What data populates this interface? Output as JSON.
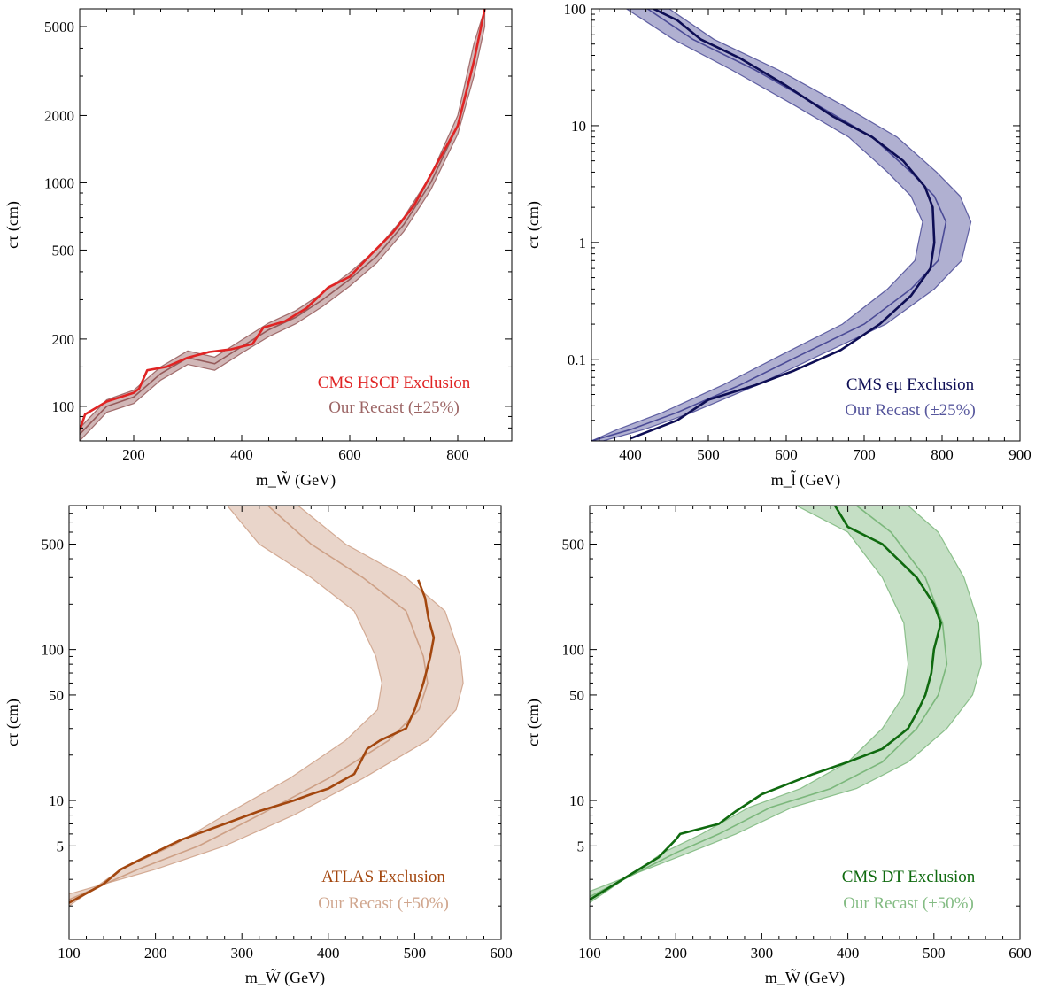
{
  "chart_data": [
    {
      "type": "line",
      "xlabel": "m_W̃ (GeV)",
      "ylabel": "cτ (cm)",
      "xlim": [
        100,
        900
      ],
      "ylim": [
        70,
        6000
      ],
      "yscale": "log",
      "xticks": [
        200,
        400,
        600,
        800
      ],
      "yticks": [
        100,
        200,
        500,
        1000,
        2000,
        5000
      ],
      "legend_position": "bottom-right",
      "band": {
        "name": "Our Recast (±25%)",
        "color": "#8b4a4a",
        "center": {
          "x": [
            100,
            150,
            200,
            250,
            300,
            350,
            400,
            450,
            500,
            550,
            600,
            650,
            700,
            750,
            800,
            830,
            850
          ],
          "y": [
            75,
            100,
            110,
            140,
            165,
            155,
            185,
            220,
            250,
            300,
            370,
            470,
            650,
            1000,
            1800,
            3500,
            6000
          ]
        },
        "lower": {
          "x": [
            100,
            150,
            200,
            250,
            300,
            350,
            400,
            450,
            500,
            550,
            600,
            650,
            700,
            750,
            800,
            830,
            850
          ],
          "y": [
            70,
            94,
            103,
            131,
            154,
            145,
            173,
            205,
            234,
            280,
            345,
            438,
            605,
            930,
            1650,
            3000,
            5000
          ]
        },
        "upper": {
          "x": [
            100,
            150,
            200,
            250,
            300,
            350,
            400,
            450,
            500,
            550,
            600,
            650,
            700,
            750,
            800,
            830,
            850
          ],
          "y": [
            80,
            107,
            118,
            150,
            177,
            166,
            198,
            236,
            268,
            322,
            397,
            505,
            700,
            1080,
            2000,
            4200,
            6000
          ]
        }
      },
      "series": [
        {
          "name": "CMS HSCP Exclusion",
          "color": "#e02424",
          "x": [
            100,
            110,
            150,
            200,
            210,
            225,
            260,
            300,
            340,
            380,
            420,
            440,
            480,
            520,
            560,
            600,
            640,
            680,
            720,
            760,
            800,
            830,
            850
          ],
          "y": [
            78,
            92,
            105,
            115,
            120,
            145,
            150,
            165,
            175,
            180,
            190,
            225,
            240,
            275,
            340,
            380,
            480,
            600,
            800,
            1200,
            1800,
            3500,
            6000
          ]
        }
      ]
    },
    {
      "type": "line",
      "xlabel": "m_l̃ (GeV)",
      "ylabel": "cτ (cm)",
      "xlim": [
        350,
        900
      ],
      "ylim": [
        0.02,
        100
      ],
      "yscale": "log",
      "xticks": [
        400,
        500,
        600,
        700,
        800,
        900
      ],
      "yticks": [
        0.1,
        1,
        10,
        100
      ],
      "legend_position": "bottom-right",
      "band": {
        "name": "Our Recast (±25%)",
        "color": "#3a3a8c",
        "center": {
          "x": [
            422,
            480,
            560,
            640,
            710,
            760,
            790,
            805,
            795,
            760,
            700,
            620,
            540,
            460,
            400,
            350
          ],
          "y": [
            100,
            55,
            30,
            15,
            8,
            4,
            2.5,
            1.5,
            0.7,
            0.4,
            0.2,
            0.11,
            0.06,
            0.035,
            0.025,
            0.02
          ]
        },
        "lower": {
          "x": [
            395,
            455,
            530,
            610,
            680,
            730,
            760,
            775,
            765,
            730,
            672,
            595,
            518,
            441,
            383,
            350
          ],
          "y": [
            100,
            55,
            30,
            15,
            8,
            4,
            2.5,
            1.5,
            0.7,
            0.4,
            0.2,
            0.11,
            0.06,
            0.035,
            0.025,
            0.02
          ]
        },
        "upper": {
          "x": [
            450,
            507,
            590,
            672,
            742,
            793,
            823,
            837,
            825,
            790,
            728,
            645,
            562,
            479,
            417,
            365
          ],
          "y": [
            100,
            55,
            30,
            15,
            8,
            4,
            2.5,
            1.5,
            0.7,
            0.4,
            0.2,
            0.11,
            0.06,
            0.035,
            0.025,
            0.02
          ]
        }
      },
      "series": [
        {
          "name": "CMS eμ Exclusion",
          "color": "#0e0e55",
          "x": [
            430,
            460,
            490,
            540,
            600,
            660,
            710,
            750,
            778,
            788,
            790,
            785,
            760,
            720,
            670,
            610,
            560,
            500,
            460,
            400
          ],
          "y": [
            100,
            80,
            55,
            38,
            22,
            12,
            8,
            5,
            3,
            2,
            1,
            0.6,
            0.35,
            0.2,
            0.12,
            0.08,
            0.06,
            0.045,
            0.03,
            0.021
          ]
        }
      ]
    },
    {
      "type": "line",
      "xlabel": "m_W̃ (GeV)",
      "ylabel": "cτ (cm)",
      "xlim": [
        100,
        600
      ],
      "ylim": [
        1.2,
        900
      ],
      "yscale": "log",
      "xticks": [
        100,
        200,
        300,
        400,
        500,
        600
      ],
      "yticks": [
        5,
        10,
        50,
        100,
        500
      ],
      "legend_position": "bottom-right",
      "band": {
        "name": "Our Recast (±50%)",
        "color": "#c8967a",
        "center": {
          "x": [
            330,
            380,
            440,
            490,
            510,
            515,
            505,
            470,
            400,
            320,
            250,
            180,
            100
          ],
          "y": [
            900,
            500,
            300,
            180,
            90,
            60,
            40,
            25,
            14,
            8,
            5,
            3.5,
            2.2
          ]
        },
        "lower": {
          "x": [
            283,
            320,
            380,
            430,
            455,
            462,
            457,
            420,
            355,
            280,
            220,
            160,
            100
          ],
          "y": [
            900,
            500,
            300,
            180,
            90,
            60,
            40,
            25,
            14,
            8,
            5,
            3.5,
            2.0
          ]
        },
        "upper": {
          "x": [
            365,
            420,
            490,
            535,
            553,
            556,
            548,
            515,
            440,
            360,
            280,
            200,
            100
          ],
          "y": [
            900,
            500,
            300,
            180,
            90,
            60,
            40,
            25,
            14,
            8,
            5,
            3.5,
            2.4
          ]
        }
      },
      "series": [
        {
          "name": "ATLAS Exclusion",
          "color": "#a3470f",
          "x": [
            504,
            512,
            516,
            522,
            518,
            510,
            500,
            490,
            460,
            445,
            435,
            430,
            400,
            380,
            360,
            320,
            280,
            230,
            180,
            160,
            140,
            100
          ],
          "y": [
            290,
            220,
            160,
            120,
            90,
            60,
            40,
            30,
            25,
            22,
            17,
            15,
            12,
            11,
            10,
            8.5,
            7,
            5.5,
            4,
            3.5,
            2.8,
            2.1
          ]
        }
      ]
    },
    {
      "type": "line",
      "xlabel": "m_W̃ (GeV)",
      "ylabel": "cτ (cm)",
      "xlim": [
        100,
        600
      ],
      "ylim": [
        1.2,
        900
      ],
      "yscale": "log",
      "xticks": [
        100,
        200,
        300,
        400,
        500,
        600
      ],
      "yticks": [
        5,
        10,
        50,
        100,
        500
      ],
      "legend_position": "bottom-right",
      "band": {
        "name": "Our Recast (±50%)",
        "color": "#6fb06f",
        "center": {
          "x": [
            410,
            450,
            490,
            510,
            515,
            505,
            480,
            440,
            380,
            310,
            250,
            200,
            100
          ],
          "y": [
            900,
            600,
            300,
            150,
            80,
            50,
            30,
            18,
            12,
            9,
            6,
            4.5,
            2.3
          ]
        },
        "lower": {
          "x": [
            340,
            400,
            440,
            465,
            470,
            465,
            440,
            400,
            345,
            285,
            230,
            185,
            100
          ],
          "y": [
            900,
            600,
            300,
            150,
            80,
            50,
            30,
            18,
            12,
            9,
            6,
            4.5,
            2.1
          ]
        },
        "upper": {
          "x": [
            470,
            505,
            535,
            552,
            555,
            545,
            515,
            470,
            410,
            335,
            270,
            215,
            100
          ],
          "y": [
            900,
            600,
            300,
            150,
            80,
            50,
            30,
            18,
            12,
            9,
            6,
            4.5,
            2.5
          ]
        }
      },
      "series": [
        {
          "name": "CMS DT Exclusion",
          "color": "#0f6a0f",
          "x": [
            385,
            400,
            440,
            480,
            500,
            508,
            500,
            497,
            490,
            482,
            470,
            460,
            440,
            400,
            360,
            300,
            270,
            250,
            205,
            200,
            180,
            150,
            100
          ],
          "y": [
            900,
            650,
            500,
            300,
            200,
            150,
            100,
            70,
            50,
            40,
            30,
            27,
            22,
            18,
            15,
            11,
            8.5,
            7,
            6,
            5.5,
            4.2,
            3.3,
            2.2
          ]
        }
      ]
    }
  ],
  "legend_labels": [
    {
      "main": "CMS HSCP Exclusion",
      "recast": "Our Recast (±25%)"
    },
    {
      "main": "CMS eμ Exclusion",
      "recast": "Our Recast (±25%)"
    },
    {
      "main": "ATLAS Exclusion",
      "recast": "Our Recast (±50%)"
    },
    {
      "main": "CMS DT Exclusion",
      "recast": "Our Recast (±50%)"
    }
  ]
}
